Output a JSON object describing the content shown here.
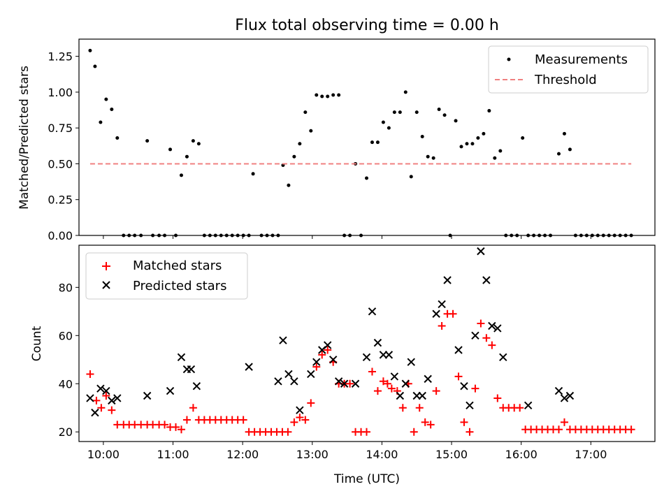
{
  "chart_data": [
    {
      "type": "scatter",
      "title": "Flux total observing time = 0.00 h",
      "xlabel": "",
      "ylabel": "Matched/Predicted stars",
      "xlim": [
        9.65,
        17.92
      ],
      "ylim": [
        0,
        1.37
      ],
      "x_ticks": [
        10,
        11,
        12,
        13,
        14,
        15,
        16,
        17
      ],
      "y_ticks": [
        0,
        0.25,
        0.5,
        0.75,
        1.0,
        1.25
      ],
      "y_tick_labels": [
        "0.00",
        "0.25",
        "0.50",
        "0.75",
        "1.00",
        "1.25"
      ],
      "legend_position": "top-right",
      "series": [
        {
          "name": "Measurements",
          "marker": "dot",
          "color": "#000000",
          "points": [
            [
              9.81,
              1.29
            ],
            [
              9.88,
              1.18
            ],
            [
              9.96,
              0.79
            ],
            [
              10.04,
              0.95
            ],
            [
              10.12,
              0.88
            ],
            [
              10.2,
              0.68
            ],
            [
              10.29,
              0.0
            ],
            [
              10.37,
              0.0
            ],
            [
              10.45,
              0.0
            ],
            [
              10.54,
              0.0
            ],
            [
              10.63,
              0.66
            ],
            [
              10.71,
              0.0
            ],
            [
              10.8,
              0.0
            ],
            [
              10.88,
              0.0
            ],
            [
              10.96,
              0.6
            ],
            [
              11.04,
              0.0
            ],
            [
              11.12,
              0.42
            ],
            [
              11.2,
              0.55
            ],
            [
              11.29,
              0.66
            ],
            [
              11.37,
              0.64
            ],
            [
              11.45,
              0.0
            ],
            [
              11.53,
              0.0
            ],
            [
              11.61,
              0.0
            ],
            [
              11.69,
              0.0
            ],
            [
              11.77,
              0.0
            ],
            [
              11.85,
              0.0
            ],
            [
              11.93,
              0.0
            ],
            [
              12.01,
              0.0
            ],
            [
              12.09,
              0.0
            ],
            [
              12.15,
              0.43
            ],
            [
              12.27,
              0.0
            ],
            [
              12.35,
              0.0
            ],
            [
              12.43,
              0.0
            ],
            [
              12.51,
              0.0
            ],
            [
              12.58,
              0.49
            ],
            [
              12.66,
              0.35
            ],
            [
              12.74,
              0.55
            ],
            [
              12.82,
              0.64
            ],
            [
              12.9,
              0.86
            ],
            [
              12.98,
              0.73
            ],
            [
              13.06,
              0.98
            ],
            [
              13.14,
              0.97
            ],
            [
              13.22,
              0.97
            ],
            [
              13.3,
              0.98
            ],
            [
              13.38,
              0.98
            ],
            [
              13.46,
              0.0
            ],
            [
              13.54,
              0.0
            ],
            [
              13.62,
              0.5
            ],
            [
              13.7,
              0.0
            ],
            [
              13.78,
              0.4
            ],
            [
              13.86,
              0.65
            ],
            [
              13.94,
              0.65
            ],
            [
              14.02,
              0.79
            ],
            [
              14.1,
              0.75
            ],
            [
              14.18,
              0.86
            ],
            [
              14.26,
              0.86
            ],
            [
              14.34,
              1.0
            ],
            [
              14.42,
              0.41
            ],
            [
              14.5,
              0.86
            ],
            [
              14.58,
              0.69
            ],
            [
              14.66,
              0.55
            ],
            [
              14.74,
              0.54
            ],
            [
              14.82,
              0.88
            ],
            [
              14.9,
              0.84
            ],
            [
              14.98,
              0.0
            ],
            [
              15.06,
              0.8
            ],
            [
              15.14,
              0.62
            ],
            [
              15.22,
              0.64
            ],
            [
              15.3,
              0.64
            ],
            [
              15.38,
              0.68
            ],
            [
              15.46,
              0.71
            ],
            [
              15.54,
              0.87
            ],
            [
              15.62,
              0.54
            ],
            [
              15.7,
              0.59
            ],
            [
              15.78,
              0.0
            ],
            [
              15.86,
              0.0
            ],
            [
              15.94,
              0.0
            ],
            [
              16.02,
              0.68
            ],
            [
              16.1,
              0.0
            ],
            [
              16.18,
              0.0
            ],
            [
              16.26,
              0.0
            ],
            [
              16.34,
              0.0
            ],
            [
              16.42,
              0.0
            ],
            [
              16.54,
              0.57
            ],
            [
              16.62,
              0.71
            ],
            [
              16.7,
              0.6
            ],
            [
              16.78,
              0.0
            ],
            [
              16.86,
              0.0
            ],
            [
              16.94,
              0.0
            ],
            [
              17.02,
              0.0
            ],
            [
              17.1,
              0.0
            ],
            [
              17.18,
              0.0
            ],
            [
              17.26,
              0.0
            ],
            [
              17.34,
              0.0
            ],
            [
              17.42,
              0.0
            ],
            [
              17.5,
              0.0
            ],
            [
              17.58,
              0.0
            ]
          ]
        },
        {
          "name": "Threshold",
          "line": "dashed",
          "color": "#f08080",
          "points": [
            [
              9.81,
              0.5
            ],
            [
              17.58,
              0.5
            ]
          ]
        }
      ]
    },
    {
      "type": "scatter",
      "title": "",
      "xlabel": "Time (UTC)",
      "ylabel": "Count",
      "xlim": [
        9.65,
        17.92
      ],
      "ylim": [
        16,
        97.5
      ],
      "x_ticks": [
        10,
        11,
        12,
        13,
        14,
        15,
        16,
        17
      ],
      "x_tick_labels": [
        "10:00",
        "11:00",
        "12:00",
        "13:00",
        "14:00",
        "15:00",
        "16:00",
        "17:00"
      ],
      "y_ticks": [
        20,
        40,
        60,
        80
      ],
      "y_tick_labels": [
        "20",
        "40",
        "60",
        "80"
      ],
      "legend_position": "top-left",
      "series": [
        {
          "name": "Matched stars",
          "marker": "plus",
          "color": "#ff0000",
          "points": [
            [
              9.81,
              44
            ],
            [
              9.9,
              33
            ],
            [
              9.97,
              30
            ],
            [
              10.04,
              35
            ],
            [
              10.12,
              29
            ],
            [
              10.2,
              23
            ],
            [
              10.29,
              23
            ],
            [
              10.37,
              23
            ],
            [
              10.45,
              23
            ],
            [
              10.54,
              23
            ],
            [
              10.63,
              23
            ],
            [
              10.71,
              23
            ],
            [
              10.8,
              23
            ],
            [
              10.88,
              23
            ],
            [
              10.96,
              22
            ],
            [
              11.04,
              22
            ],
            [
              11.12,
              21
            ],
            [
              11.2,
              25
            ],
            [
              11.29,
              30
            ],
            [
              11.37,
              25
            ],
            [
              11.45,
              25
            ],
            [
              11.53,
              25
            ],
            [
              11.61,
              25
            ],
            [
              11.69,
              25
            ],
            [
              11.77,
              25
            ],
            [
              11.85,
              25
            ],
            [
              11.93,
              25
            ],
            [
              12.01,
              25
            ],
            [
              12.09,
              20
            ],
            [
              12.17,
              20
            ],
            [
              12.25,
              20
            ],
            [
              12.33,
              20
            ],
            [
              12.41,
              20
            ],
            [
              12.49,
              20
            ],
            [
              12.57,
              20
            ],
            [
              12.65,
              20
            ],
            [
              12.74,
              24
            ],
            [
              12.82,
              26
            ],
            [
              12.9,
              25
            ],
            [
              12.98,
              32
            ],
            [
              13.06,
              47
            ],
            [
              13.14,
              52
            ],
            [
              13.22,
              54
            ],
            [
              13.3,
              49
            ],
            [
              13.38,
              40
            ],
            [
              13.46,
              40
            ],
            [
              13.54,
              40
            ],
            [
              13.62,
              20
            ],
            [
              13.7,
              20
            ],
            [
              13.78,
              20
            ],
            [
              13.86,
              45
            ],
            [
              13.94,
              37
            ],
            [
              14.02,
              41
            ],
            [
              14.08,
              40
            ],
            [
              14.14,
              38
            ],
            [
              14.22,
              37
            ],
            [
              14.3,
              30
            ],
            [
              14.38,
              40
            ],
            [
              14.46,
              20
            ],
            [
              14.54,
              30
            ],
            [
              14.62,
              24
            ],
            [
              14.7,
              23
            ],
            [
              14.78,
              37
            ],
            [
              14.86,
              64
            ],
            [
              14.94,
              69
            ],
            [
              15.02,
              69
            ],
            [
              15.1,
              43
            ],
            [
              15.18,
              24
            ],
            [
              15.26,
              20
            ],
            [
              15.34,
              38
            ],
            [
              15.42,
              65
            ],
            [
              15.5,
              59
            ],
            [
              15.58,
              56
            ],
            [
              15.66,
              34
            ],
            [
              15.74,
              30
            ],
            [
              15.82,
              30
            ],
            [
              15.9,
              30
            ],
            [
              15.98,
              30
            ],
            [
              16.06,
              21
            ],
            [
              16.14,
              21
            ],
            [
              16.22,
              21
            ],
            [
              16.3,
              21
            ],
            [
              16.38,
              21
            ],
            [
              16.46,
              21
            ],
            [
              16.54,
              21
            ],
            [
              16.62,
              24
            ],
            [
              16.7,
              21
            ],
            [
              16.78,
              21
            ],
            [
              16.86,
              21
            ],
            [
              16.94,
              21
            ],
            [
              17.02,
              21
            ],
            [
              17.1,
              21
            ],
            [
              17.18,
              21
            ],
            [
              17.26,
              21
            ],
            [
              17.34,
              21
            ],
            [
              17.42,
              21
            ],
            [
              17.5,
              21
            ],
            [
              17.58,
              21
            ]
          ]
        },
        {
          "name": "Predicted stars",
          "marker": "x",
          "color": "#000000",
          "points": [
            [
              9.81,
              34
            ],
            [
              9.88,
              28
            ],
            [
              9.96,
              38
            ],
            [
              10.04,
              37
            ],
            [
              10.12,
              33
            ],
            [
              10.2,
              34
            ],
            [
              10.63,
              35
            ],
            [
              10.96,
              37
            ],
            [
              11.12,
              51
            ],
            [
              11.2,
              46
            ],
            [
              11.26,
              46
            ],
            [
              11.34,
              39
            ],
            [
              12.09,
              47
            ],
            [
              12.51,
              41
            ],
            [
              12.58,
              58
            ],
            [
              12.66,
              44
            ],
            [
              12.74,
              41
            ],
            [
              12.82,
              29
            ],
            [
              12.98,
              44
            ],
            [
              13.06,
              49
            ],
            [
              13.14,
              54
            ],
            [
              13.22,
              56
            ],
            [
              13.3,
              50
            ],
            [
              13.38,
              41
            ],
            [
              13.46,
              40
            ],
            [
              13.62,
              40
            ],
            [
              13.78,
              51
            ],
            [
              13.86,
              70
            ],
            [
              13.94,
              57
            ],
            [
              14.02,
              52
            ],
            [
              14.1,
              52
            ],
            [
              14.18,
              43
            ],
            [
              14.26,
              35
            ],
            [
              14.34,
              40
            ],
            [
              14.42,
              49
            ],
            [
              14.5,
              35
            ],
            [
              14.58,
              35
            ],
            [
              14.66,
              42
            ],
            [
              14.78,
              69
            ],
            [
              14.86,
              73
            ],
            [
              14.94,
              83
            ],
            [
              15.1,
              54
            ],
            [
              15.18,
              39
            ],
            [
              15.26,
              31
            ],
            [
              15.34,
              60
            ],
            [
              15.42,
              95
            ],
            [
              15.5,
              83
            ],
            [
              15.58,
              64
            ],
            [
              15.66,
              63
            ],
            [
              15.74,
              51
            ],
            [
              16.1,
              31
            ],
            [
              16.54,
              37
            ],
            [
              16.62,
              34
            ],
            [
              16.7,
              35
            ]
          ]
        }
      ]
    }
  ]
}
